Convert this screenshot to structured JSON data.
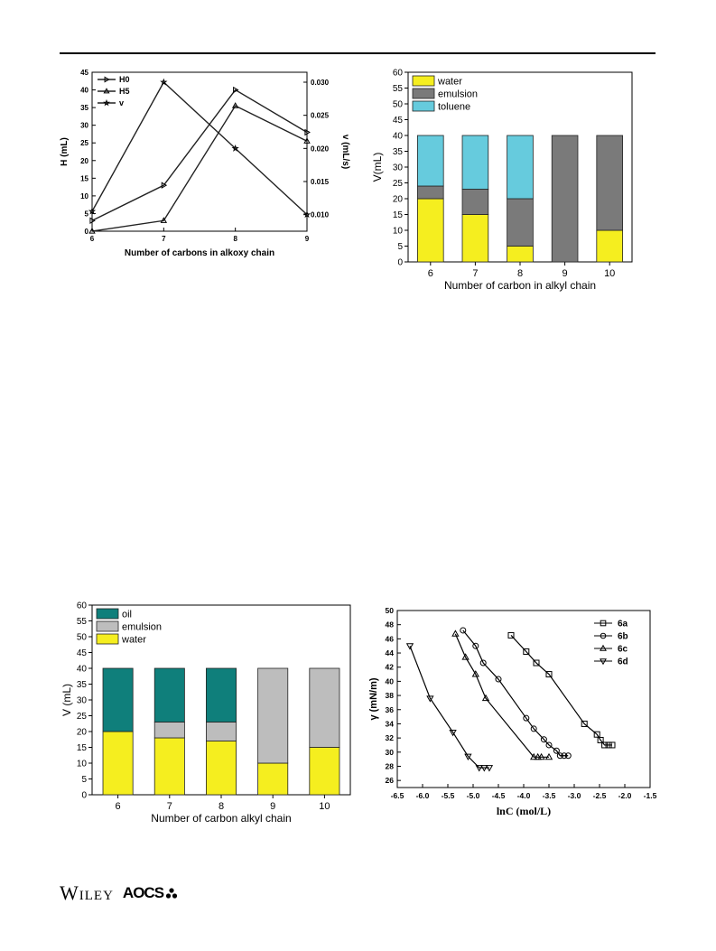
{
  "footer": {
    "publisher": "Wiley",
    "society": "AOCS"
  },
  "chart_data": [
    {
      "type": "line",
      "xlabel": "Number of carbons in  alkoxy chain",
      "ylabel": "H (mL)",
      "y2label": "v (mL/s)",
      "xlim": [
        6,
        9
      ],
      "xticks": [
        6,
        7,
        8,
        9
      ],
      "ylim": [
        0,
        45
      ],
      "yticks": [
        0,
        5,
        10,
        15,
        20,
        25,
        30,
        35,
        40,
        45
      ],
      "y2lim": [
        0.0075,
        0.0315
      ],
      "y2ticks": [
        0.01,
        0.015,
        0.02,
        0.025,
        0.03
      ],
      "y2ticklabels": [
        "0.010",
        "0.015",
        "0.020",
        "0.025",
        "0.030"
      ],
      "x": [
        6,
        7,
        8,
        9
      ],
      "legend_position": "top-left",
      "series": [
        {
          "name": "H0",
          "axis": "left",
          "marker": "triangle-right",
          "values": [
            3,
            13,
            40,
            28
          ]
        },
        {
          "name": "H5",
          "axis": "left",
          "marker": "triangle-up",
          "values": [
            0,
            3,
            35.5,
            25.5
          ]
        },
        {
          "name": "v",
          "axis": "right",
          "marker": "star",
          "values": [
            0.0105,
            0.03,
            0.02,
            0.01
          ]
        }
      ]
    },
    {
      "type": "bar",
      "stacked": true,
      "xlabel": "Number of carbon in alkyl chain",
      "ylabel": "V(mL)",
      "categories": [
        "6",
        "7",
        "8",
        "9",
        "10"
      ],
      "ylim": [
        0,
        60
      ],
      "yticks": [
        0,
        5,
        10,
        15,
        20,
        25,
        30,
        35,
        40,
        45,
        50,
        55,
        60
      ],
      "legend_position": "top-left",
      "series": [
        {
          "name": "water",
          "color": "#f5ee1f",
          "values": [
            20,
            15,
            5,
            0,
            10
          ]
        },
        {
          "name": "emulsion",
          "color": "#7a7a7a",
          "values": [
            4,
            8,
            15,
            40,
            30
          ]
        },
        {
          "name": "toluene",
          "color": "#66cbdd",
          "values": [
            16,
            17,
            20,
            0,
            0
          ]
        }
      ]
    },
    {
      "type": "bar",
      "stacked": true,
      "xlabel": "Number of carbon alkyl chain",
      "ylabel": "V (mL)",
      "categories": [
        "6",
        "7",
        "8",
        "9",
        "10"
      ],
      "ylim": [
        0,
        60
      ],
      "yticks": [
        0,
        5,
        10,
        15,
        20,
        25,
        30,
        35,
        40,
        45,
        50,
        55,
        60
      ],
      "legend_position": "top-left",
      "series": [
        {
          "name": "oil",
          "color": "#0f7f7b",
          "values": [
            20,
            17,
            17,
            0,
            0
          ]
        },
        {
          "name": "emulsion",
          "color": "#bdbdbd",
          "values": [
            0,
            5,
            6,
            30,
            25
          ]
        },
        {
          "name": "water",
          "color": "#f5ee1f",
          "values": [
            20,
            18,
            17,
            10,
            15
          ]
        }
      ]
    },
    {
      "type": "scatter",
      "xlabel": "lnC (mol/L)",
      "ylabel": "γ (mN/m)",
      "xlim": [
        -6.5,
        -1.5
      ],
      "xticks": [
        -6.5,
        -6.0,
        -5.5,
        -5.0,
        -4.5,
        -4.0,
        -3.5,
        -3.0,
        -2.5,
        -2.0,
        -1.5
      ],
      "xticklabels": [
        "-6.5",
        "-6.0",
        "-5.5",
        "-5.0",
        "-4.5",
        "-4.0",
        "-3.5",
        "-3.0",
        "-2.5",
        "-2.0",
        "-1.5"
      ],
      "ylim": [
        25,
        50
      ],
      "yticks": [
        26,
        28,
        30,
        32,
        34,
        36,
        38,
        40,
        42,
        44,
        46,
        48,
        50
      ],
      "legend_position": "top-right",
      "series": [
        {
          "name": "6a",
          "marker": "square",
          "x": [
            -4.25,
            -3.95,
            -3.75,
            -3.5,
            -2.8,
            -2.55,
            -2.48,
            -2.4,
            -2.32,
            -2.25
          ],
          "y": [
            46.5,
            44.2,
            42.6,
            41.0,
            34.0,
            32.5,
            31.7,
            31.0,
            31.0,
            31.0
          ]
        },
        {
          "name": "6b",
          "marker": "circle",
          "x": [
            -5.2,
            -4.95,
            -4.8,
            -4.5,
            -3.95,
            -3.8,
            -3.6,
            -3.5,
            -3.35,
            -3.28,
            -3.2,
            -3.12
          ],
          "y": [
            47.2,
            45.0,
            42.6,
            40.3,
            34.8,
            33.3,
            31.8,
            31.0,
            30.2,
            29.5,
            29.5,
            29.5
          ]
        },
        {
          "name": "6c",
          "marker": "triangle-up",
          "x": [
            -5.35,
            -5.15,
            -4.95,
            -4.75,
            -3.8,
            -3.72,
            -3.65,
            -3.5
          ],
          "y": [
            46.7,
            43.4,
            41.0,
            37.6,
            29.3,
            29.3,
            29.3,
            29.3
          ]
        },
        {
          "name": "6d",
          "marker": "triangle-down",
          "x": [
            -6.25,
            -5.85,
            -5.4,
            -5.1,
            -4.88,
            -4.78,
            -4.68
          ],
          "y": [
            45.0,
            37.6,
            32.8,
            29.4,
            27.8,
            27.8,
            27.8
          ]
        }
      ]
    }
  ]
}
